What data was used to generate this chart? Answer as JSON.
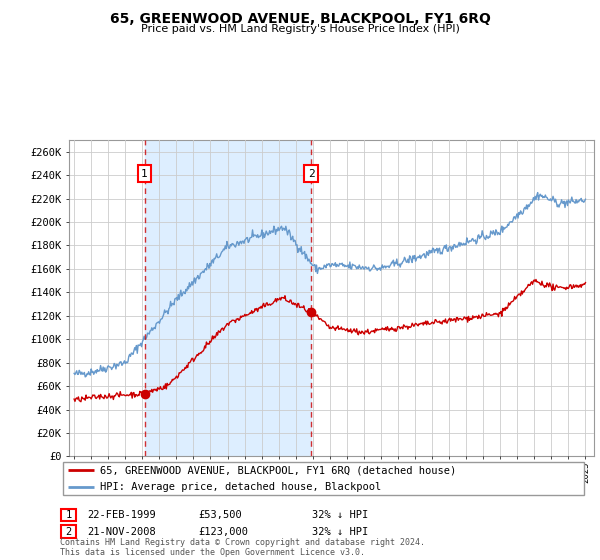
{
  "title": "65, GREENWOOD AVENUE, BLACKPOOL, FY1 6RQ",
  "subtitle": "Price paid vs. HM Land Registry's House Price Index (HPI)",
  "ylabel_ticks": [
    "£0",
    "£20K",
    "£40K",
    "£60K",
    "£80K",
    "£100K",
    "£120K",
    "£140K",
    "£160K",
    "£180K",
    "£200K",
    "£220K",
    "£240K",
    "£260K"
  ],
  "ytick_values": [
    0,
    20000,
    40000,
    60000,
    80000,
    100000,
    120000,
    140000,
    160000,
    180000,
    200000,
    220000,
    240000,
    260000
  ],
  "ylim": [
    0,
    270000
  ],
  "x_start_year": 1995,
  "x_end_year": 2025,
  "marker1_year": 1999.13,
  "marker1_price": 53500,
  "marker1_label": "1",
  "marker2_year": 2008.9,
  "marker2_price": 123000,
  "marker2_label": "2",
  "red_line_color": "#cc0000",
  "blue_line_color": "#6699cc",
  "shade_color": "#ddeeff",
  "grid_color": "#cccccc",
  "background_color": "#ffffff",
  "legend_line1": "65, GREENWOOD AVENUE, BLACKPOOL, FY1 6RQ (detached house)",
  "legend_line2": "HPI: Average price, detached house, Blackpool",
  "table_row1": [
    "1",
    "22-FEB-1999",
    "£53,500",
    "32% ↓ HPI"
  ],
  "table_row2": [
    "2",
    "21-NOV-2008",
    "£123,000",
    "32% ↓ HPI"
  ],
  "footer": "Contains HM Land Registry data © Crown copyright and database right 2024.\nThis data is licensed under the Open Government Licence v3.0."
}
